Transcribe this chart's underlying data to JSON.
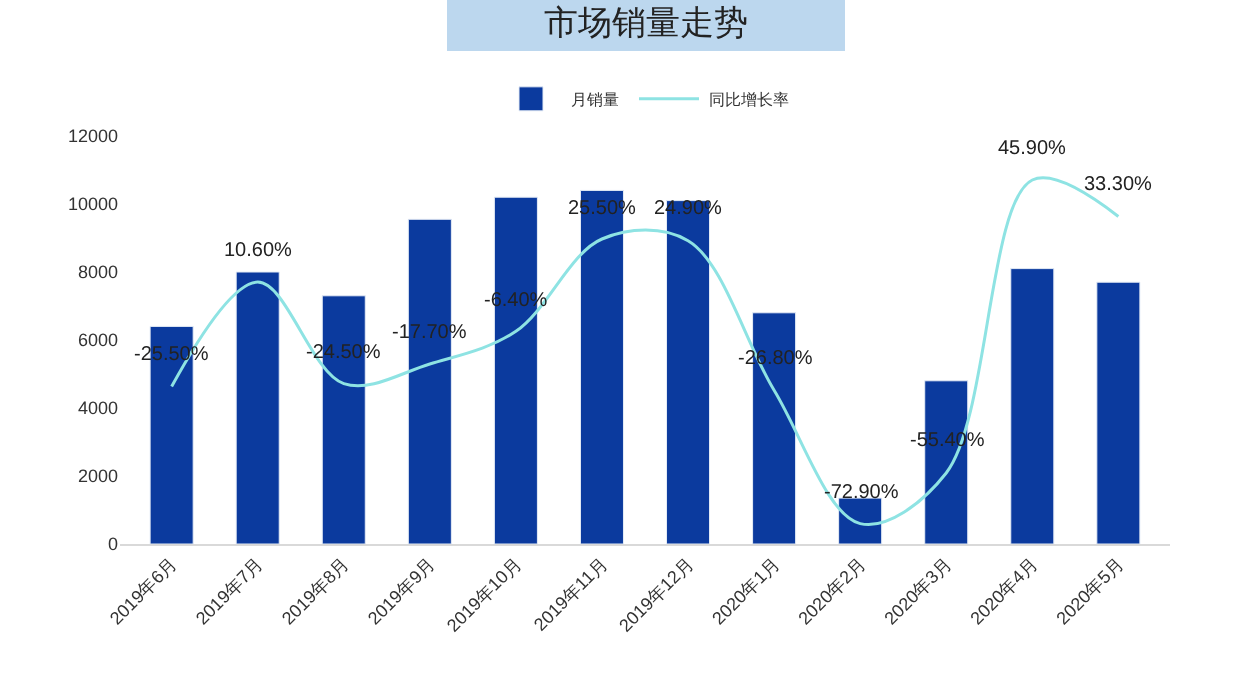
{
  "chart_data": {
    "type": "bar",
    "title": "市场销量走势",
    "categories": [
      "2019年6月",
      "2019年7月",
      "2019年8月",
      "2019年9月",
      "2019年10月",
      "2019年11月",
      "2019年12月",
      "2020年1月",
      "2020年2月",
      "2020年3月",
      "2020年4月",
      "2020年5月"
    ],
    "series": [
      {
        "name": "月销量",
        "color": "#0b3a9e",
        "values": [
          6400,
          8000,
          7300,
          9550,
          10200,
          10400,
          10100,
          6800,
          1350,
          4800,
          8100,
          7700
        ]
      },
      {
        "name": "同比增长率",
        "type": "line",
        "axis": "y2",
        "color": "#8ee3e3",
        "values": [
          -25.5,
          10.6,
          -24.5,
          -17.7,
          -6.4,
          25.5,
          24.9,
          -26.8,
          -72.9,
          -55.4,
          45.9,
          33.3
        ],
        "value_labels": [
          "-25.50%",
          "10.60%",
          "-24.50%",
          "-17.70%",
          "-6.40%",
          "25.50%",
          "24.90%",
          "-26.80%",
          "-72.90%",
          "-55.40%",
          "45.90%",
          "33.30%"
        ]
      }
    ],
    "ylim": [
      0,
      12000
    ],
    "yticks": [
      0,
      2000,
      4000,
      6000,
      8000,
      10000,
      12000
    ],
    "tick_labels": "y",
    "legend": "top",
    "grid": false,
    "marker": "none",
    "line_style": "solid"
  }
}
